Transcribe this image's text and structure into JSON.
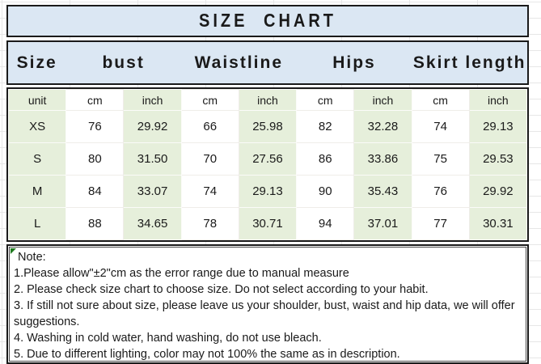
{
  "title": "SIZE CHART",
  "table": {
    "header_row": [
      "Size",
      "bust",
      "Waistline",
      "Hips",
      "Skirt length"
    ],
    "unit_row": [
      "unit",
      "cm",
      "inch",
      "cm",
      "inch",
      "cm",
      "inch",
      "cm",
      "inch"
    ],
    "rows": [
      {
        "cells": [
          "XS",
          "76",
          "29.92",
          "66",
          "25.98",
          "82",
          "32.28",
          "74",
          "29.13"
        ]
      },
      {
        "cells": [
          "S",
          "80",
          "31.50",
          "70",
          "27.56",
          "86",
          "33.86",
          "75",
          "29.53"
        ]
      },
      {
        "cells": [
          "M",
          "84",
          "33.07",
          "74",
          "29.13",
          "90",
          "35.43",
          "76",
          "29.92"
        ]
      },
      {
        "cells": [
          "L",
          "88",
          "34.65",
          "78",
          "30.71",
          "94",
          "37.01",
          "77",
          "30.31"
        ]
      }
    ]
  },
  "note": {
    "label": "Note:",
    "lines": [
      "1.Please allow\"±2\"cm as the error range due to manual measure",
      "2. Please check size chart to choose size. Do not select according to your habit.",
      "3. If still not sure about size, please leave us your shoulder, bust, waist and hip data, we will offer",
      "suggestions.",
      "4. Washing in cold water, hand washing, do not use bleach.",
      "5. Due to different lighting, color may not 100% the same as in description."
    ]
  },
  "colors": {
    "header_bg": "#dbe7f3",
    "stripe_green": "#e6efdb",
    "border": "#1a1a1a",
    "error_indicator_green": "#1e7a1e"
  },
  "chart_data": {
    "type": "table",
    "title": "SIZE CHART",
    "columns": [
      "Size",
      "bust (cm)",
      "bust (inch)",
      "Waistline (cm)",
      "Waistline (inch)",
      "Hips (cm)",
      "Hips (inch)",
      "Skirt length (cm)",
      "Skirt length (inch)"
    ],
    "rows": [
      [
        "XS",
        76,
        29.92,
        66,
        25.98,
        82,
        32.28,
        74,
        29.13
      ],
      [
        "S",
        80,
        31.5,
        70,
        27.56,
        86,
        33.86,
        75,
        29.53
      ],
      [
        "M",
        84,
        33.07,
        74,
        29.13,
        90,
        35.43,
        76,
        29.92
      ],
      [
        "L",
        88,
        34.65,
        78,
        30.71,
        94,
        37.01,
        77,
        30.31
      ]
    ]
  }
}
